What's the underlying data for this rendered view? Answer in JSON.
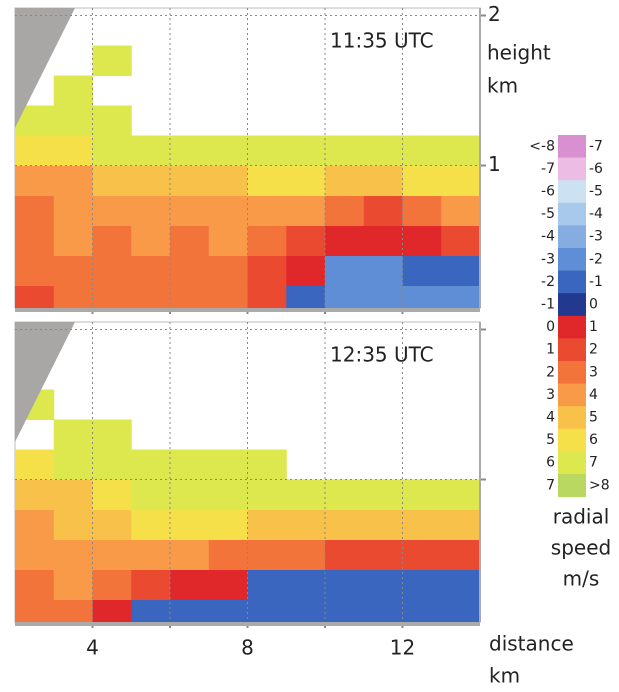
{
  "chart_data": [
    {
      "type": "heatmap",
      "title": "11:35 UTC",
      "xlim": [
        2,
        14
      ],
      "ylim": [
        0.05,
        2.05
      ],
      "xticks": [
        4,
        8,
        12
      ],
      "xminor": [
        6,
        10
      ],
      "yticks": [
        1,
        2
      ],
      "ytick_labels_shown": true,
      "xtick_labels_shown": false,
      "y_label": [
        "height",
        "km"
      ],
      "x_bins": [
        2,
        3,
        4,
        5,
        6,
        7,
        8,
        9,
        10,
        11,
        12,
        13,
        14
      ],
      "y_bins": [
        0.05,
        0.2,
        0.4,
        0.6,
        0.8,
        1.0,
        1.2,
        1.4,
        1.6,
        1.8,
        2.05
      ],
      "z": [
        [
          1.5,
          2.5,
          2.5,
          2.5,
          2.5,
          2.5,
          1.5,
          -1.5,
          -2.5,
          -2.5,
          -2.5,
          -2.5
        ],
        [
          2.5,
          2.5,
          2.5,
          2.5,
          2.5,
          2.5,
          1.5,
          0.5,
          -2.5,
          -2.5,
          -1.5,
          -1.5
        ],
        [
          2.5,
          3.5,
          2.5,
          3.5,
          2.5,
          3.5,
          2.5,
          1.5,
          0.5,
          0.5,
          0.5,
          1.5
        ],
        [
          2.5,
          3.5,
          3.5,
          3.5,
          3.5,
          3.5,
          3.5,
          3.5,
          2.5,
          1.5,
          2.5,
          3.5
        ],
        [
          3.5,
          3.5,
          4.5,
          4.5,
          4.5,
          4.5,
          5.5,
          5.5,
          4.5,
          4.5,
          5.5,
          5.5
        ],
        [
          5.5,
          5.5,
          6.5,
          6.5,
          6.5,
          6.5,
          6.5,
          6.5,
          6.5,
          6.5,
          6.5,
          6.5
        ],
        [
          6.5,
          6.5,
          6.5,
          null,
          null,
          null,
          null,
          null,
          null,
          null,
          null,
          null
        ],
        [
          null,
          6.5,
          null,
          null,
          null,
          null,
          null,
          null,
          null,
          null,
          null,
          null
        ],
        [
          null,
          null,
          6.5,
          null,
          null,
          null,
          null,
          null,
          null,
          null,
          null,
          null
        ],
        [
          null,
          null,
          null,
          null,
          null,
          null,
          null,
          null,
          null,
          null,
          null,
          null
        ]
      ]
    },
    {
      "type": "heatmap",
      "title": "12:35 UTC",
      "xlim": [
        2,
        14
      ],
      "ylim": [
        0.05,
        2.05
      ],
      "xticks": [
        4,
        8,
        12
      ],
      "xminor": [
        6,
        10
      ],
      "yticks": [
        1,
        2
      ],
      "ytick_labels_shown": false,
      "xtick_labels_shown": true,
      "x_label": [
        "distance",
        "km"
      ],
      "x_bins": [
        2,
        3,
        4,
        5,
        6,
        7,
        8,
        9,
        10,
        11,
        12,
        13,
        14
      ],
      "y_bins": [
        0.05,
        0.2,
        0.4,
        0.6,
        0.8,
        1.0,
        1.2,
        1.4,
        1.6,
        1.8,
        2.05
      ],
      "z": [
        [
          2.5,
          2.5,
          0.5,
          -1.5,
          -1.5,
          -1.5,
          -1.5,
          -1.5,
          -1.5,
          -1.5,
          -1.5,
          -1.5
        ],
        [
          2.5,
          3.5,
          2.5,
          1.5,
          0.5,
          0.5,
          -1.5,
          -1.5,
          -1.5,
          -1.5,
          -1.5,
          -1.5
        ],
        [
          3.5,
          3.5,
          3.5,
          3.5,
          3.5,
          2.5,
          2.5,
          2.5,
          1.5,
          1.5,
          1.5,
          1.5
        ],
        [
          3.5,
          4.5,
          4.5,
          5.5,
          5.5,
          5.5,
          4.5,
          4.5,
          4.5,
          4.5,
          4.5,
          4.5
        ],
        [
          4.5,
          4.5,
          5.5,
          6.5,
          6.5,
          6.5,
          6.5,
          6.5,
          6.5,
          6.5,
          6.5,
          6.5
        ],
        [
          5.5,
          6.5,
          6.5,
          6.5,
          6.5,
          6.5,
          6.5,
          null,
          null,
          null,
          null,
          null
        ],
        [
          null,
          6.5,
          6.5,
          null,
          null,
          null,
          null,
          null,
          null,
          null,
          null,
          null
        ],
        [
          6.5,
          null,
          null,
          null,
          null,
          null,
          null,
          null,
          null,
          null,
          null,
          null
        ],
        [
          null,
          null,
          null,
          null,
          null,
          null,
          null,
          null,
          null,
          null,
          null,
          null
        ],
        [
          null,
          null,
          null,
          null,
          null,
          null,
          null,
          null,
          null,
          null,
          null,
          null
        ]
      ]
    }
  ],
  "colorbar": {
    "edges": [
      {
        "value": -8,
        "label": "<-8"
      },
      -7,
      -6,
      -5,
      -4,
      -3,
      -2,
      -1,
      0,
      1,
      2,
      3,
      4,
      5,
      6,
      7,
      {
        "value": 8,
        "label": ">8"
      }
    ],
    "colors": [
      "#d890d0",
      "#ecbce4",
      "#cce2f2",
      "#a9c9ec",
      "#86ade2",
      "#5f8ed6",
      "#3b66bf",
      "#22398f",
      "#e0282a",
      "#ea4a30",
      "#f2743a",
      "#f89a48",
      "#f8c24a",
      "#f6e04a",
      "#dde84e",
      "#b8d862"
    ],
    "label": [
      "radial",
      "speed",
      "m/s"
    ]
  }
}
